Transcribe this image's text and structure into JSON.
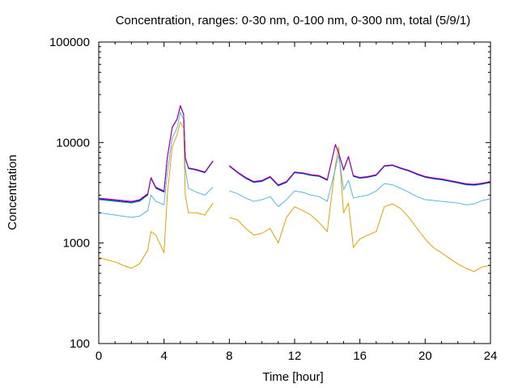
{
  "chart_data": {
    "type": "line",
    "title": "Concentration, ranges: 0-30 nm, 0-100 nm, 0-300 nm, total (5/9/1)",
    "xlabel": "Time [hour]",
    "ylabel": "Concentration",
    "xlim": [
      0,
      24
    ],
    "ylim": [
      100,
      100000
    ],
    "yscale": "log",
    "grid": false,
    "legend": "none",
    "x_ticks": [
      0,
      4,
      8,
      12,
      16,
      20,
      24
    ],
    "x_tick_labels": [
      "0",
      "4",
      "8",
      "12",
      "16",
      "20",
      "24"
    ],
    "y_ticks": [
      100,
      1000,
      10000,
      100000
    ],
    "y_tick_labels": [
      "100",
      "1000",
      "10000",
      "100000"
    ],
    "x": [
      0,
      0.5,
      1,
      1.5,
      2,
      2.5,
      3,
      3.2,
      3.5,
      4,
      4.2,
      4.5,
      4.8,
      5,
      5.2,
      5.3,
      5.5,
      6,
      6.5,
      7,
      7.6,
      8,
      8.5,
      9,
      9.5,
      10,
      10.5,
      11,
      11.5,
      12,
      12.5,
      13,
      13.5,
      14,
      14.5,
      14.7,
      15,
      15.3,
      15.6,
      16,
      16.5,
      17,
      17.5,
      18,
      18.5,
      19,
      19.5,
      20,
      20.5,
      21,
      21.5,
      22,
      22.5,
      23,
      23.5,
      24
    ],
    "series": [
      {
        "color": "#e69f00",
        "values": [
          720,
          680,
          650,
          600,
          560,
          620,
          850,
          1300,
          1200,
          800,
          3000,
          9000,
          12000,
          16000,
          14000,
          3000,
          2000,
          2000,
          1900,
          2500,
          null,
          1800,
          1700,
          1400,
          1200,
          1250,
          1400,
          1000,
          1800,
          2300,
          2100,
          1900,
          1600,
          1300,
          6000,
          9000,
          2000,
          2500,
          900,
          1100,
          1200,
          1300,
          2300,
          2450,
          2200,
          1800,
          1400,
          1100,
          900,
          800,
          700,
          620,
          560,
          520,
          580,
          600
        ]
      },
      {
        "color": "#56b4e9",
        "values": [
          2000,
          1950,
          1900,
          1850,
          1800,
          1850,
          2100,
          3000,
          2600,
          2400,
          5000,
          11000,
          14000,
          20000,
          17000,
          5500,
          3500,
          3200,
          3000,
          3600,
          null,
          3300,
          3100,
          2800,
          2600,
          2700,
          2900,
          2300,
          2700,
          3300,
          3200,
          3000,
          2900,
          2600,
          5500,
          7500,
          3400,
          4200,
          2800,
          2900,
          3000,
          3300,
          3900,
          3800,
          3500,
          3200,
          2900,
          2700,
          2650,
          2600,
          2550,
          2500,
          2400,
          2450,
          2650,
          2750
        ]
      },
      {
        "color": "#009e73",
        "values": [
          2700,
          2650,
          2600,
          2550,
          2500,
          2600,
          3000,
          4400,
          3500,
          3200,
          7000,
          14000,
          17000,
          23000,
          19000,
          7000,
          5500,
          5300,
          5000,
          6500,
          null,
          5800,
          5000,
          4400,
          4000,
          4100,
          4500,
          3700,
          4000,
          5000,
          4900,
          4700,
          4600,
          4200,
          9500,
          7800,
          5300,
          7200,
          4600,
          4400,
          4500,
          4700,
          5800,
          5900,
          5500,
          5200,
          4800,
          4500,
          4350,
          4250,
          4100,
          3950,
          3800,
          3750,
          3850,
          4000
        ]
      },
      {
        "color": "#0000ff",
        "values": [
          2750,
          2700,
          2650,
          2600,
          2550,
          2650,
          3050,
          4450,
          3550,
          3250,
          7050,
          14100,
          17100,
          23200,
          19100,
          7050,
          5550,
          5350,
          5050,
          6550,
          null,
          5850,
          5050,
          4450,
          4050,
          4150,
          4550,
          3750,
          4050,
          5050,
          4950,
          4750,
          4650,
          4250,
          9550,
          7850,
          5350,
          7250,
          4650,
          4450,
          4550,
          4750,
          5850,
          5950,
          5550,
          5250,
          4850,
          4550,
          4400,
          4300,
          4150,
          4000,
          3850,
          3800,
          3900,
          4050
        ]
      },
      {
        "color": "#cc0099",
        "values": [
          2800,
          2750,
          2700,
          2650,
          2600,
          2700,
          3100,
          4500,
          3600,
          3300,
          7100,
          14200,
          17200,
          23400,
          19200,
          7100,
          5600,
          5400,
          5100,
          6600,
          null,
          5900,
          5100,
          4500,
          4100,
          4200,
          4600,
          3800,
          4100,
          5100,
          5000,
          4800,
          4700,
          4300,
          9600,
          7900,
          5400,
          7300,
          4700,
          4500,
          4600,
          4800,
          5900,
          6000,
          5600,
          5300,
          4900,
          4600,
          4450,
          4350,
          4200,
          4050,
          3900,
          3850,
          3950,
          4100
        ]
      }
    ]
  }
}
